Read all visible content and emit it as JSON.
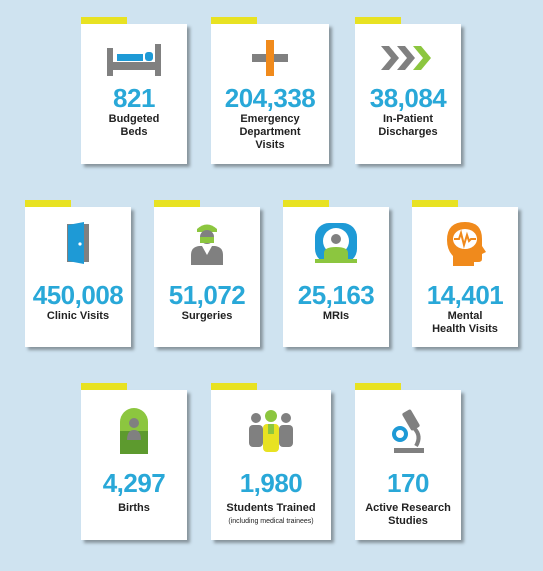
{
  "stats": {
    "beds": {
      "value": "821",
      "label": "Budgeted\nBeds",
      "icon": "bed-icon"
    },
    "ed": {
      "value": "204,338",
      "label": "Emergency\nDepartment\nVisits",
      "icon": "cross-icon"
    },
    "discharges": {
      "value": "38,084",
      "label": "In-Patient\nDischarges",
      "icon": "chevrons-icon"
    },
    "clinic": {
      "value": "450,008",
      "label": "Clinic Visits",
      "icon": "door-icon"
    },
    "surgeries": {
      "value": "51,072",
      "label": "Surgeries",
      "icon": "surgeon-icon"
    },
    "mris": {
      "value": "25,163",
      "label": "MRIs",
      "icon": "mri-scanner-icon"
    },
    "mental": {
      "value": "14,401",
      "label": "Mental\nHealth Visits",
      "icon": "brain-head-icon"
    },
    "births": {
      "value": "4,297",
      "label": "Births",
      "icon": "baby-icon"
    },
    "students": {
      "value": "1,980",
      "label": "Students Trained",
      "sublabel": "(including medical trainees)",
      "icon": "students-icon"
    },
    "research": {
      "value": "170",
      "label": "Active Research\nStudies",
      "icon": "microscope-icon"
    }
  },
  "colors": {
    "background": "#cfe3f0",
    "number": "#29a8d8",
    "tab": "#e8e222",
    "gray": "#808080",
    "orange": "#f08a1c",
    "green": "#8cc63f",
    "blue": "#1e9ad6"
  }
}
